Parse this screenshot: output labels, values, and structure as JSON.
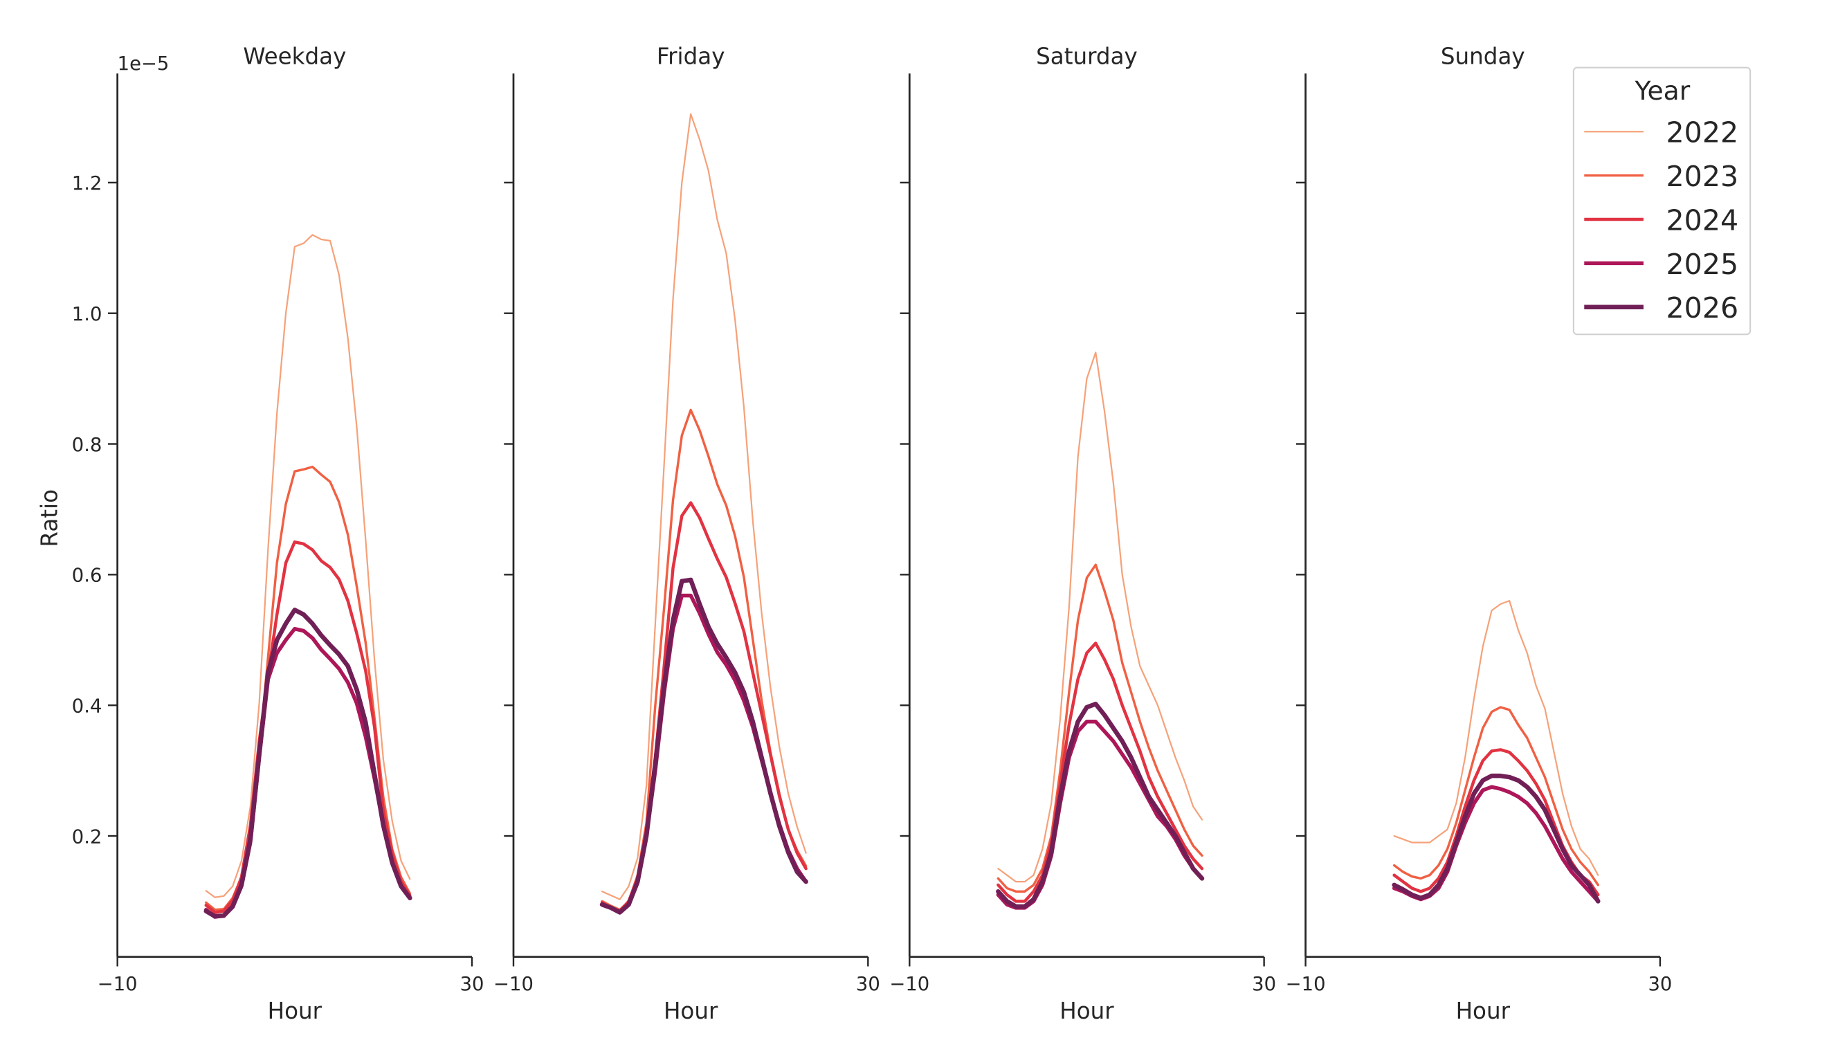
{
  "figure": {
    "y_offset_label": "1e−5",
    "ylabel": "Ratio",
    "legend": {
      "title": "Year",
      "placement": "top-right",
      "entries": [
        "2022",
        "2023",
        "2024",
        "2025",
        "2026"
      ]
    },
    "series_colors": {
      "2022": "#f5a27a",
      "2023": "#f06043",
      "2024": "#e13342",
      "2025": "#ad1759",
      "2026": "#701f57"
    },
    "xticks": [
      "−10",
      "30"
    ],
    "yticks": [
      "0.2",
      "0.4",
      "0.6",
      "0.8",
      "1.0",
      "1.2"
    ]
  },
  "chart_data": [
    {
      "type": "line",
      "title": "Weekday",
      "xlabel": "Hour",
      "ylabel": "Ratio",
      "xlim": [
        -10,
        30
      ],
      "ylim": [
        0.015,
        1.367
      ],
      "y_scale_factor": "1e-5",
      "grid": false,
      "x": [
        0,
        1,
        2,
        3,
        4,
        5,
        6,
        7,
        8,
        9,
        10,
        11,
        12,
        13,
        14,
        15,
        16,
        17,
        18,
        19,
        20,
        21,
        22,
        23
      ],
      "series": [
        {
          "name": "2022",
          "values": [
            0.116,
            0.106,
            0.108,
            0.123,
            0.162,
            0.245,
            0.403,
            0.64,
            0.847,
            1.0,
            1.102,
            1.107,
            1.12,
            1.113,
            1.111,
            1.059,
            0.962,
            0.826,
            0.654,
            0.47,
            0.317,
            0.223,
            0.162,
            0.134
          ]
        },
        {
          "name": "2023",
          "values": [
            0.098,
            0.087,
            0.088,
            0.105,
            0.137,
            0.209,
            0.331,
            0.474,
            0.618,
            0.708,
            0.758,
            0.761,
            0.765,
            0.753,
            0.742,
            0.711,
            0.661,
            0.582,
            0.496,
            0.381,
            0.259,
            0.18,
            0.137,
            0.112
          ]
        },
        {
          "name": "2024",
          "values": [
            0.094,
            0.083,
            0.085,
            0.101,
            0.137,
            0.216,
            0.345,
            0.446,
            0.539,
            0.618,
            0.65,
            0.647,
            0.638,
            0.621,
            0.611,
            0.593,
            0.56,
            0.51,
            0.453,
            0.367,
            0.238,
            0.173,
            0.13,
            0.109
          ]
        },
        {
          "name": "2025",
          "values": [
            0.087,
            0.076,
            0.078,
            0.091,
            0.123,
            0.19,
            0.32,
            0.44,
            0.48,
            0.5,
            0.517,
            0.514,
            0.503,
            0.485,
            0.471,
            0.456,
            0.435,
            0.403,
            0.352,
            0.288,
            0.216,
            0.159,
            0.123,
            0.105
          ]
        },
        {
          "name": "2026",
          "values": [
            0.085,
            0.077,
            0.078,
            0.092,
            0.125,
            0.195,
            0.325,
            0.45,
            0.5,
            0.525,
            0.546,
            0.539,
            0.525,
            0.507,
            0.492,
            0.478,
            0.46,
            0.424,
            0.374,
            0.295,
            0.216,
            0.159,
            0.123,
            0.105
          ]
        }
      ]
    },
    {
      "type": "line",
      "title": "Friday",
      "xlabel": "Hour",
      "xlim": [
        -10,
        30
      ],
      "ylim": [
        0.015,
        1.367
      ],
      "grid": false,
      "x": [
        0,
        1,
        2,
        3,
        4,
        5,
        6,
        7,
        8,
        9,
        10,
        11,
        12,
        13,
        14,
        15,
        16,
        17,
        18,
        19,
        20,
        21,
        22,
        23
      ],
      "series": [
        {
          "name": "2022",
          "values": [
            0.115,
            0.109,
            0.103,
            0.123,
            0.166,
            0.277,
            0.525,
            0.77,
            1.021,
            1.2,
            1.305,
            1.266,
            1.218,
            1.143,
            1.092,
            0.99,
            0.856,
            0.683,
            0.541,
            0.427,
            0.336,
            0.265,
            0.214,
            0.174
          ]
        },
        {
          "name": "2023",
          "values": [
            0.1,
            0.093,
            0.087,
            0.1,
            0.14,
            0.22,
            0.4,
            0.55,
            0.714,
            0.813,
            0.852,
            0.821,
            0.781,
            0.738,
            0.706,
            0.659,
            0.596,
            0.501,
            0.407,
            0.328,
            0.265,
            0.21,
            0.178,
            0.154
          ]
        },
        {
          "name": "2024",
          "values": [
            0.098,
            0.09,
            0.085,
            0.1,
            0.135,
            0.21,
            0.32,
            0.46,
            0.61,
            0.69,
            0.71,
            0.687,
            0.655,
            0.624,
            0.596,
            0.556,
            0.513,
            0.45,
            0.387,
            0.324,
            0.261,
            0.21,
            0.174,
            0.15
          ]
        },
        {
          "name": "2025",
          "values": [
            0.095,
            0.09,
            0.083,
            0.095,
            0.128,
            0.2,
            0.3,
            0.42,
            0.517,
            0.568,
            0.568,
            0.541,
            0.509,
            0.481,
            0.462,
            0.438,
            0.407,
            0.367,
            0.316,
            0.265,
            0.218,
            0.178,
            0.15,
            0.13
          ]
        },
        {
          "name": "2026",
          "values": [
            0.095,
            0.09,
            0.083,
            0.095,
            0.13,
            0.2,
            0.31,
            0.43,
            0.53,
            0.59,
            0.592,
            0.555,
            0.52,
            0.494,
            0.473,
            0.45,
            0.42,
            0.375,
            0.32,
            0.265,
            0.215,
            0.175,
            0.145,
            0.13
          ]
        }
      ]
    },
    {
      "type": "line",
      "title": "Saturday",
      "xlabel": "Hour",
      "xlim": [
        -10,
        30
      ],
      "ylim": [
        0.015,
        1.367
      ],
      "grid": false,
      "x": [
        0,
        1,
        2,
        3,
        4,
        5,
        6,
        7,
        8,
        9,
        10,
        11,
        12,
        13,
        14,
        15,
        16,
        17,
        18,
        19,
        20,
        21,
        22,
        23
      ],
      "series": [
        {
          "name": "2022",
          "values": [
            0.15,
            0.14,
            0.13,
            0.13,
            0.14,
            0.18,
            0.25,
            0.38,
            0.55,
            0.78,
            0.9,
            0.94,
            0.85,
            0.74,
            0.6,
            0.52,
            0.46,
            0.43,
            0.4,
            0.36,
            0.32,
            0.285,
            0.245,
            0.225
          ]
        },
        {
          "name": "2023",
          "values": [
            0.135,
            0.12,
            0.115,
            0.115,
            0.125,
            0.15,
            0.2,
            0.3,
            0.42,
            0.53,
            0.595,
            0.615,
            0.575,
            0.53,
            0.465,
            0.42,
            0.375,
            0.335,
            0.3,
            0.27,
            0.24,
            0.21,
            0.185,
            0.17
          ]
        },
        {
          "name": "2024",
          "values": [
            0.125,
            0.11,
            0.1,
            0.1,
            0.115,
            0.14,
            0.19,
            0.28,
            0.37,
            0.44,
            0.48,
            0.495,
            0.47,
            0.44,
            0.4,
            0.365,
            0.33,
            0.29,
            0.26,
            0.235,
            0.21,
            0.185,
            0.165,
            0.15
          ]
        },
        {
          "name": "2025",
          "values": [
            0.11,
            0.095,
            0.09,
            0.09,
            0.1,
            0.125,
            0.17,
            0.25,
            0.32,
            0.36,
            0.375,
            0.375,
            0.36,
            0.345,
            0.325,
            0.305,
            0.28,
            0.255,
            0.23,
            0.215,
            0.195,
            0.17,
            0.15,
            0.135
          ]
        },
        {
          "name": "2026",
          "values": [
            0.115,
            0.1,
            0.092,
            0.092,
            0.103,
            0.13,
            0.175,
            0.26,
            0.33,
            0.375,
            0.397,
            0.402,
            0.385,
            0.365,
            0.345,
            0.32,
            0.29,
            0.26,
            0.24,
            0.22,
            0.2,
            0.175,
            0.15,
            0.135
          ]
        }
      ]
    },
    {
      "type": "line",
      "title": "Sunday",
      "xlabel": "Hour",
      "xlim": [
        -10,
        30
      ],
      "ylim": [
        0.015,
        1.367
      ],
      "grid": false,
      "x": [
        0,
        1,
        2,
        3,
        4,
        5,
        6,
        7,
        8,
        9,
        10,
        11,
        12,
        13,
        14,
        15,
        16,
        17,
        18,
        19,
        20,
        21,
        22,
        23
      ],
      "series": [
        {
          "name": "2022",
          "values": [
            0.2,
            0.195,
            0.19,
            0.19,
            0.19,
            0.2,
            0.21,
            0.25,
            0.32,
            0.41,
            0.49,
            0.545,
            0.555,
            0.56,
            0.515,
            0.48,
            0.43,
            0.395,
            0.33,
            0.265,
            0.215,
            0.18,
            0.165,
            0.14
          ]
        },
        {
          "name": "2023",
          "values": [
            0.155,
            0.145,
            0.138,
            0.135,
            0.14,
            0.155,
            0.18,
            0.22,
            0.27,
            0.32,
            0.365,
            0.39,
            0.397,
            0.393,
            0.37,
            0.35,
            0.32,
            0.29,
            0.25,
            0.21,
            0.18,
            0.16,
            0.145,
            0.125
          ]
        },
        {
          "name": "2024",
          "values": [
            0.14,
            0.13,
            0.12,
            0.115,
            0.12,
            0.135,
            0.16,
            0.2,
            0.245,
            0.285,
            0.315,
            0.33,
            0.332,
            0.328,
            0.315,
            0.3,
            0.28,
            0.255,
            0.22,
            0.185,
            0.16,
            0.14,
            0.13,
            0.11
          ]
        },
        {
          "name": "2025",
          "values": [
            0.12,
            0.115,
            0.108,
            0.103,
            0.108,
            0.12,
            0.145,
            0.185,
            0.22,
            0.25,
            0.27,
            0.275,
            0.272,
            0.267,
            0.26,
            0.25,
            0.235,
            0.215,
            0.19,
            0.165,
            0.145,
            0.13,
            0.115,
            0.1
          ]
        },
        {
          "name": "2026",
          "values": [
            0.125,
            0.118,
            0.11,
            0.105,
            0.11,
            0.125,
            0.15,
            0.19,
            0.23,
            0.265,
            0.285,
            0.292,
            0.292,
            0.29,
            0.285,
            0.275,
            0.26,
            0.24,
            0.21,
            0.18,
            0.155,
            0.14,
            0.125,
            0.1
          ]
        }
      ]
    }
  ]
}
